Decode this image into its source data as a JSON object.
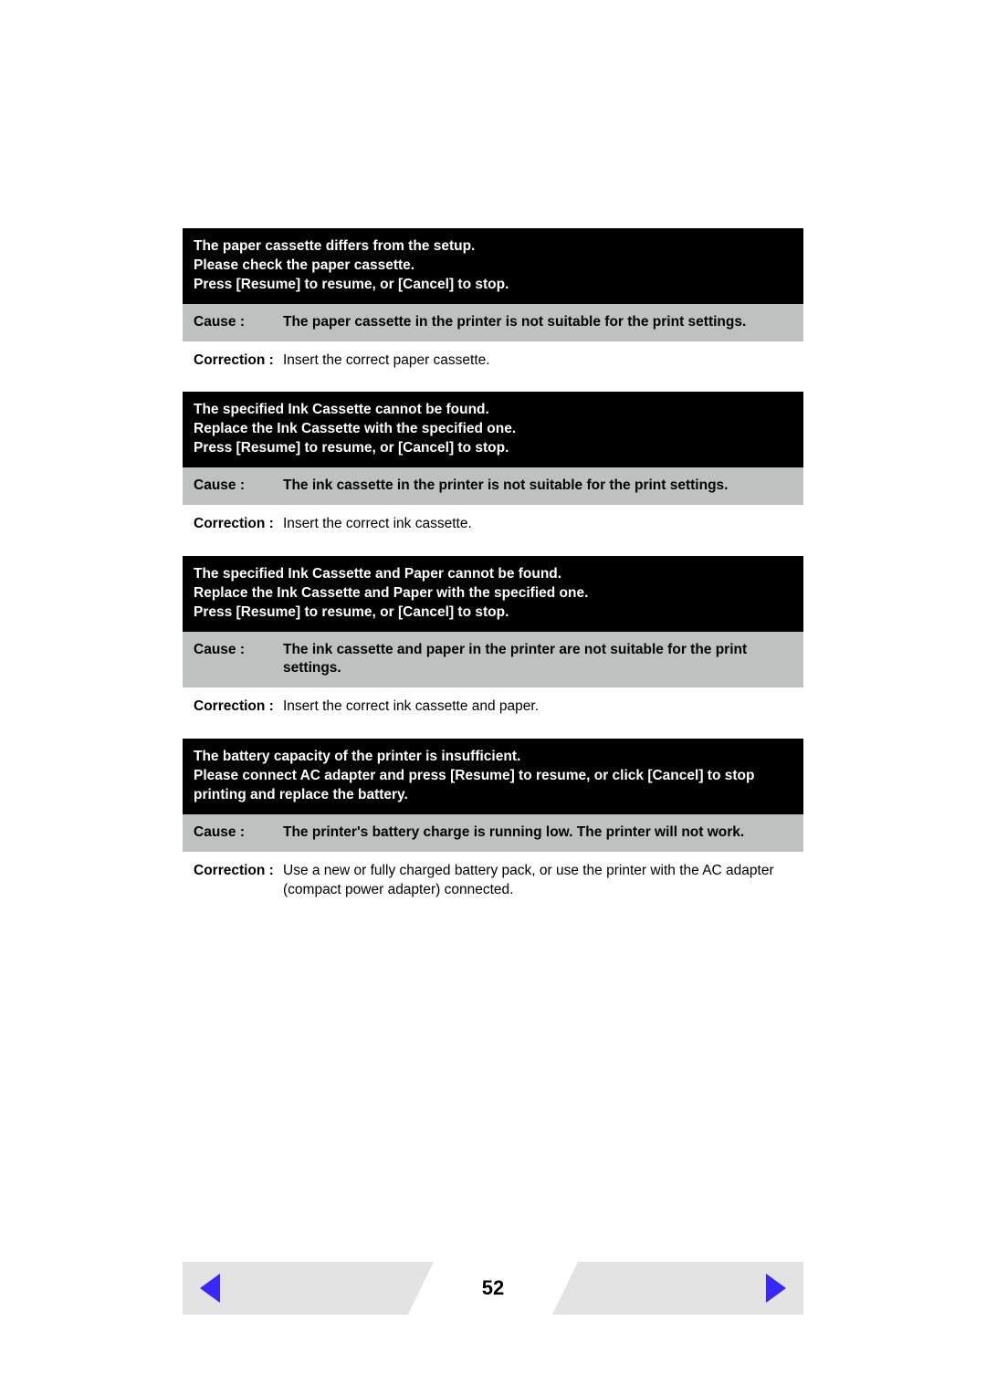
{
  "colors": {
    "black": "#000000",
    "white": "#ffffff",
    "grey": "#bfc0c0",
    "footer_grey": "#e3e3e3",
    "arrow_blue": "#3728ff"
  },
  "blocks": [
    {
      "header": "The paper cassette differs from the setup.\nPlease check the paper cassette.\nPress [Resume] to resume, or [Cancel] to stop.",
      "cause_label": "Cause :",
      "cause": "The paper cassette in the printer is not suitable for the print settings.",
      "correction_label": "Correction :",
      "correction": "Insert the correct paper cassette."
    },
    {
      "header": "The specified Ink Cassette cannot be found.\nReplace the Ink Cassette with the specified one.\nPress [Resume] to resume, or [Cancel] to stop.",
      "cause_label": "Cause :",
      "cause": "The ink cassette in the printer is not suitable for the print settings.",
      "correction_label": "Correction :",
      "correction": "Insert the correct ink cassette."
    },
    {
      "header": "The specified Ink Cassette and Paper cannot be found.\nReplace the Ink Cassette and Paper with the specified one.\nPress [Resume] to resume, or [Cancel] to stop.",
      "cause_label": "Cause :",
      "cause": "The ink cassette and paper in the printer are not suitable for the print settings.",
      "correction_label": "Correction :",
      "correction": "Insert the correct ink cassette and paper."
    },
    {
      "header": "The battery capacity of the printer is insufficient.\nPlease connect AC adapter and press [Resume] to resume, or click [Cancel] to stop printing and replace the battery.",
      "cause_label": "Cause :",
      "cause": "The printer's battery charge is running low. The printer will not work.",
      "correction_label": "Correction :",
      "correction": "Use a new or fully charged battery pack, or use the printer with the AC adapter (compact power adapter) connected."
    }
  ],
  "footer": {
    "page_number": "52",
    "prev_label": "previous-page",
    "next_label": "next-page"
  }
}
